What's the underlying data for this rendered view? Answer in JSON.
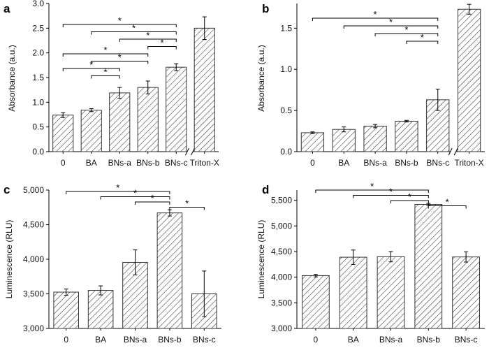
{
  "figure": {
    "colors": {
      "bar_hatch": "#333333",
      "axis": "#000000",
      "background": "#ffffff"
    },
    "panels": [
      "a",
      "b",
      "c",
      "d"
    ]
  },
  "chart_data": [
    {
      "panel": "a",
      "type": "bar",
      "ylabel": "Absorbance (a.u.)",
      "xlabel": "",
      "categories": [
        "0",
        "BA",
        "BNs-a",
        "BNs-b",
        "BNs-c",
        "Triton-X"
      ],
      "values": [
        0.74,
        0.84,
        1.19,
        1.3,
        1.71,
        2.5
      ],
      "errors": [
        0.05,
        0.03,
        0.11,
        0.13,
        0.07,
        0.23
      ],
      "ylim": [
        0,
        3.0
      ],
      "yticks": [
        0,
        0.5,
        1.0,
        1.5,
        2.0,
        2.5,
        3.0
      ],
      "ytick_labels": [
        "0.0",
        "0.5",
        "1.0",
        "1.5",
        "2.0",
        "2.5",
        "3.0"
      ],
      "axis_break_between": [
        4,
        5
      ],
      "significance": [
        {
          "from": 0,
          "to": 4,
          "label": "*"
        },
        {
          "from": 1,
          "to": 4,
          "label": "*"
        },
        {
          "from": 2,
          "to": 4,
          "label": "*"
        },
        {
          "from": 3,
          "to": 4,
          "label": "*"
        },
        {
          "from": 0,
          "to": 3,
          "label": "*"
        },
        {
          "from": 1,
          "to": 3,
          "label": "*"
        },
        {
          "from": 0,
          "to": 2,
          "label": "*"
        },
        {
          "from": 1,
          "to": 2,
          "label": "*"
        }
      ],
      "grid": false,
      "legend": "none"
    },
    {
      "panel": "b",
      "type": "bar",
      "ylabel": "Absorbance (a.u.)",
      "xlabel": "",
      "categories": [
        "0",
        "BA",
        "BNs-a",
        "BNs-b",
        "BNs-c",
        "Triton-X"
      ],
      "values": [
        0.23,
        0.27,
        0.31,
        0.37,
        0.63,
        1.73
      ],
      "errors": [
        0.01,
        0.03,
        0.02,
        0.01,
        0.13,
        0.06
      ],
      "ylim": [
        0,
        1.8
      ],
      "yticks": [
        0,
        0.5,
        1.0,
        1.5
      ],
      "ytick_labels": [
        "0.0",
        "0.5",
        "1.0",
        "1.5"
      ],
      "axis_break_between": [
        4,
        5
      ],
      "significance": [
        {
          "from": 0,
          "to": 4,
          "label": "*"
        },
        {
          "from": 1,
          "to": 4,
          "label": "*"
        },
        {
          "from": 2,
          "to": 4,
          "label": "*"
        },
        {
          "from": 3,
          "to": 4,
          "label": "*"
        }
      ],
      "grid": false,
      "legend": "none"
    },
    {
      "panel": "c",
      "type": "bar",
      "ylabel": "Luminescence (RLU)",
      "xlabel": "",
      "categories": [
        "0",
        "BA",
        "BNs-a",
        "BNs-b",
        "BNs-c"
      ],
      "values": [
        3525,
        3550,
        3955,
        4670,
        3500
      ],
      "errors": [
        45,
        65,
        180,
        45,
        330
      ],
      "ylim": [
        3000,
        5000
      ],
      "yticks": [
        3000,
        3500,
        4000,
        4500,
        5000
      ],
      "ytick_labels": [
        "3,000",
        "3,500",
        "4,000",
        "4,500",
        "5,000"
      ],
      "significance": [
        {
          "from": 0,
          "to": 3,
          "label": "*"
        },
        {
          "from": 1,
          "to": 3,
          "label": "*"
        },
        {
          "from": 2,
          "to": 3,
          "label": "*"
        },
        {
          "from": 3,
          "to": 4,
          "label": "*"
        }
      ],
      "grid": false,
      "legend": "none"
    },
    {
      "panel": "d",
      "type": "bar",
      "ylabel": "Luminescence (RLU)",
      "xlabel": "",
      "categories": [
        "0",
        "BA",
        "BNs-a",
        "BNs-b",
        "BNs-c"
      ],
      "values": [
        4030,
        4390,
        4400,
        5420,
        4395
      ],
      "errors": [
        25,
        140,
        100,
        20,
        100
      ],
      "ylim": [
        3000,
        5700
      ],
      "yticks": [
        3000,
        3500,
        4000,
        4500,
        5000,
        5500
      ],
      "ytick_labels": [
        "3,000",
        "3,500",
        "4,000",
        "4,500",
        "5,000",
        "5,500"
      ],
      "significance": [
        {
          "from": 0,
          "to": 3,
          "label": "*"
        },
        {
          "from": 1,
          "to": 3,
          "label": "*"
        },
        {
          "from": 2,
          "to": 3,
          "label": "*"
        },
        {
          "from": 3,
          "to": 4,
          "label": "*"
        }
      ],
      "grid": false,
      "legend": "none"
    }
  ]
}
